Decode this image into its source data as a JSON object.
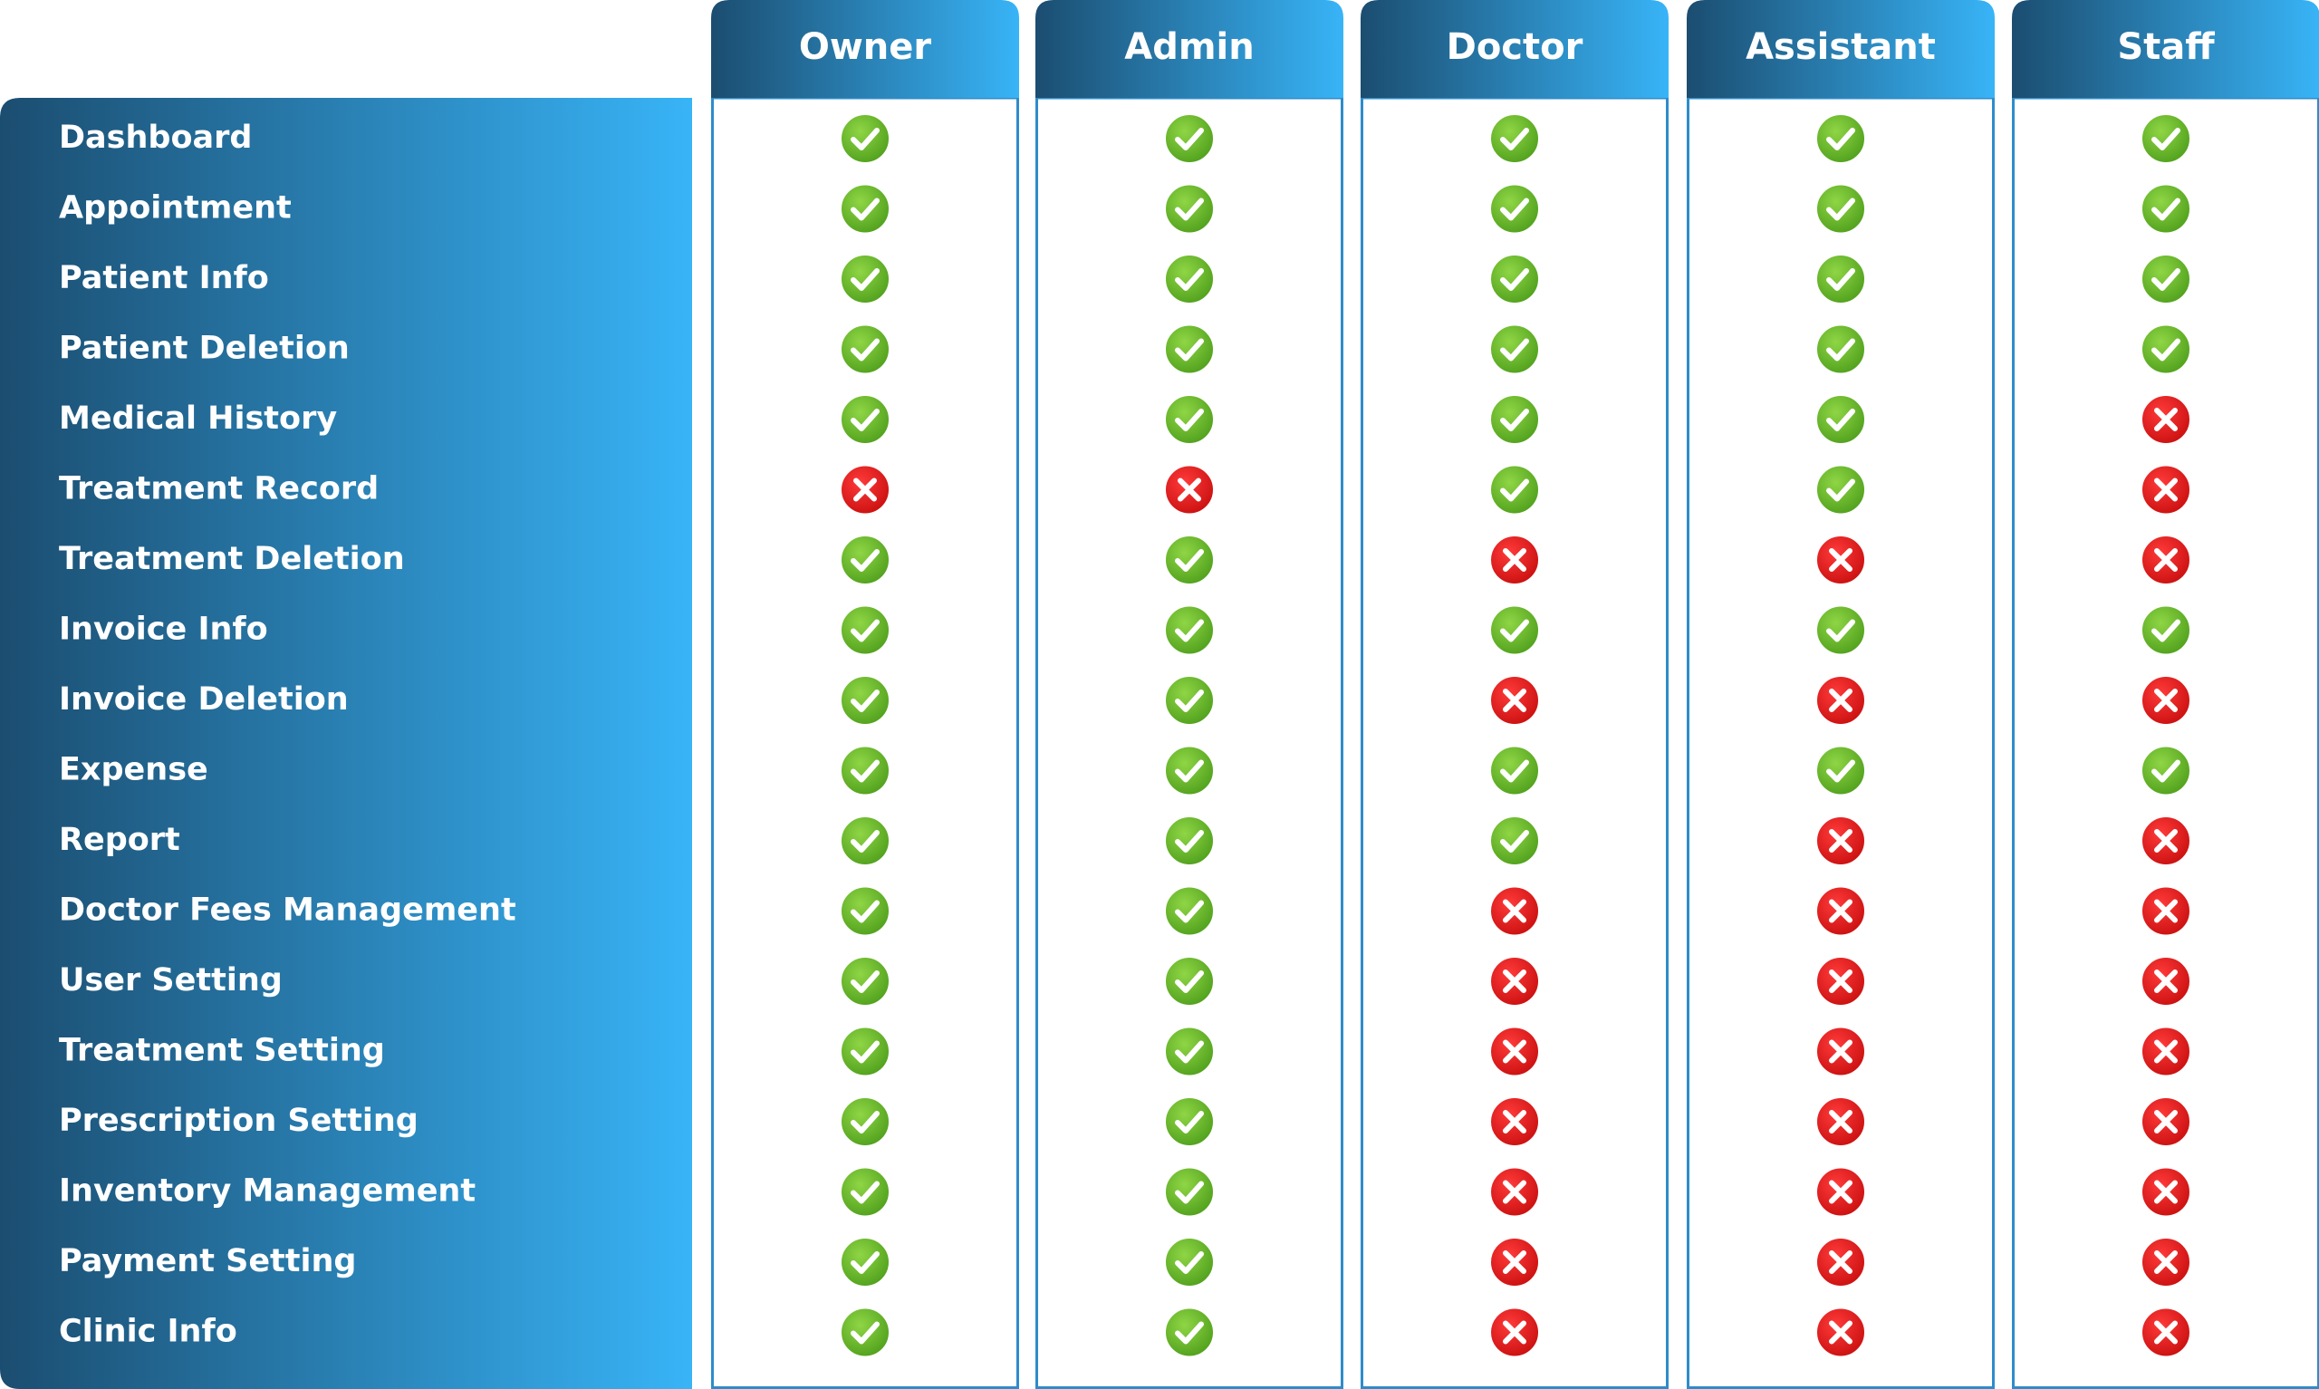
{
  "roles": [
    "Owner",
    "Admin",
    "Doctor",
    "Assistant",
    "Staff"
  ],
  "rows": [
    {
      "feature": "Dashboard",
      "access": [
        true,
        true,
        true,
        true,
        true
      ]
    },
    {
      "feature": "Appointment",
      "access": [
        true,
        true,
        true,
        true,
        true
      ]
    },
    {
      "feature": "Patient Info",
      "access": [
        true,
        true,
        true,
        true,
        true
      ]
    },
    {
      "feature": "Patient Deletion",
      "access": [
        true,
        true,
        true,
        true,
        true
      ]
    },
    {
      "feature": "Medical History",
      "access": [
        true,
        true,
        true,
        true,
        false
      ]
    },
    {
      "feature": "Treatment Record",
      "access": [
        false,
        false,
        true,
        true,
        false
      ]
    },
    {
      "feature": "Treatment Deletion",
      "access": [
        true,
        true,
        false,
        false,
        false
      ]
    },
    {
      "feature": "Invoice Info",
      "access": [
        true,
        true,
        true,
        true,
        true
      ]
    },
    {
      "feature": "Invoice Deletion",
      "access": [
        true,
        true,
        false,
        false,
        false
      ]
    },
    {
      "feature": "Expense",
      "access": [
        true,
        true,
        true,
        true,
        true
      ]
    },
    {
      "feature": "Report",
      "access": [
        true,
        true,
        true,
        false,
        false
      ]
    },
    {
      "feature": "Doctor Fees Management",
      "access": [
        true,
        true,
        false,
        false,
        false
      ]
    },
    {
      "feature": "User Setting",
      "access": [
        true,
        true,
        false,
        false,
        false
      ]
    },
    {
      "feature": "Treatment Setting",
      "access": [
        true,
        true,
        false,
        false,
        false
      ]
    },
    {
      "feature": "Prescription Setting",
      "access": [
        true,
        true,
        false,
        false,
        false
      ]
    },
    {
      "feature": "Inventory Management",
      "access": [
        true,
        true,
        false,
        false,
        false
      ]
    },
    {
      "feature": "Payment Setting",
      "access": [
        true,
        true,
        false,
        false,
        false
      ]
    },
    {
      "feature": "Clinic Info",
      "access": [
        true,
        true,
        false,
        false,
        false
      ]
    }
  ]
}
